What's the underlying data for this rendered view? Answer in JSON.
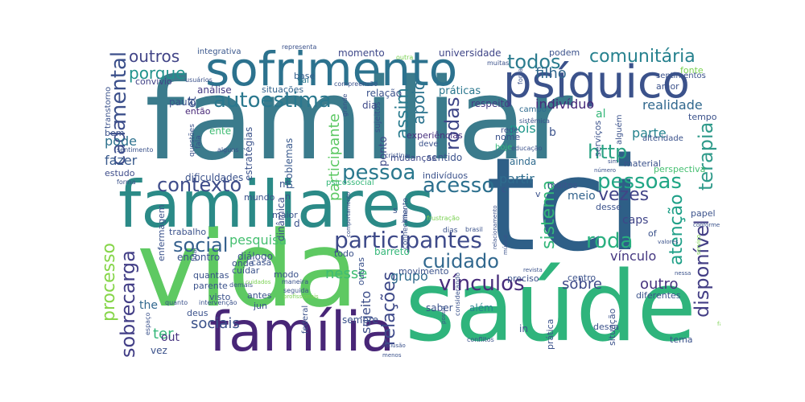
{
  "words": [
    {
      "text": "familiar",
      "color": "#3b7b8c"
    },
    {
      "text": "tci",
      "color": "#2e5f87"
    },
    {
      "text": "vida",
      "color": "#5ec962"
    },
    {
      "text": "saúde",
      "color": "#2fb47c"
    },
    {
      "text": "familiares",
      "color": "#2b8a87"
    },
    {
      "text": "família",
      "color": "#482677"
    },
    {
      "text": "sofrimento",
      "color": "#2c728e"
    },
    {
      "text": "psíquico",
      "color": "#3b528b"
    },
    {
      "text": "participantes",
      "color": "#3e4a89"
    },
    {
      "text": "vínculos",
      "color": "#472d7b"
    },
    {
      "text": "autoestima",
      "color": "#2a788e"
    },
    {
      "text": "pessoa",
      "color": "#2a788e"
    },
    {
      "text": "acesso",
      "color": "#2d708e"
    },
    {
      "text": "cuidado",
      "color": "#31688e"
    },
    {
      "text": "comunitária",
      "color": "#26818e"
    },
    {
      "text": "todos",
      "color": "#2a7b8e"
    },
    {
      "text": "outros",
      "color": "#414487"
    },
    {
      "text": "porque",
      "color": "#20928c"
    },
    {
      "text": "mental",
      "color": "#3c508b"
    },
    {
      "text": "contexto",
      "color": "#3e4c8a"
    },
    {
      "text": "pessoas",
      "color": "#21a685"
    },
    {
      "text": "terapia",
      "color": "#2f9a8a"
    },
    {
      "text": "http",
      "color": "#2ba283"
    },
    {
      "text": "cada",
      "color": "#3d4d8a"
    },
    {
      "text": "rodas",
      "color": "#3f4788"
    },
    {
      "text": "assim",
      "color": "#297b8e"
    },
    {
      "text": "social",
      "color": "#35608d"
    },
    {
      "text": "sobrecarga",
      "color": "#423e86"
    },
    {
      "text": "processo",
      "color": "#86d549"
    },
    {
      "text": "roda",
      "color": "#29af7f"
    },
    {
      "text": "vezes",
      "color": "#414487"
    },
    {
      "text": "atenção",
      "color": "#1fa088"
    },
    {
      "text": "disponível",
      "color": "#433e85"
    },
    {
      "text": "sistema",
      "color": "#33b679"
    },
    {
      "text": "relações",
      "color": "#3e4989"
    },
    {
      "text": "sociais",
      "color": "#3b528b"
    },
    {
      "text": "indivíduo",
      "color": "#472a7a"
    },
    {
      "text": "realidade",
      "color": "#31688e"
    },
    {
      "text": "filho",
      "color": "#31678e"
    },
    {
      "text": "apoio",
      "color": "#2c738e"
    },
    {
      "text": "participante",
      "color": "#5cc863"
    },
    {
      "text": "universidade",
      "color": "#404688"
    },
    {
      "text": "momento",
      "color": "#3f4889"
    },
    {
      "text": "integrativa",
      "color": "#39568c"
    },
    {
      "text": "práticas",
      "color": "#2a778e"
    },
    {
      "text": "relação",
      "color": "#3b528b"
    },
    {
      "text": "respeito",
      "color": "#433d84"
    },
    {
      "text": "campo",
      "color": "#2f6b8e"
    },
    {
      "text": "outro",
      "color": "#46327e"
    },
    {
      "text": "sobre",
      "color": "#3e4a89"
    },
    {
      "text": "grupo",
      "color": "#2f6c8e"
    },
    {
      "text": "sujeito",
      "color": "#3d4e8a"
    },
    {
      "text": "nesse",
      "color": "#3fbc73"
    },
    {
      "text": "pesquisa",
      "color": "#45bf70"
    },
    {
      "text": "ponto",
      "color": "#3e4a89"
    },
    {
      "text": "fazer",
      "color": "#38598c"
    },
    {
      "text": "pode",
      "color": "#2d718e"
    },
    {
      "text": "partir",
      "color": "#2f6c8e"
    },
    {
      "text": "meio",
      "color": "#33638d"
    },
    {
      "text": "caps",
      "color": "#404588"
    },
    {
      "text": "vínculo",
      "color": "#453781"
    },
    {
      "text": "parte",
      "color": "#25838e"
    },
    {
      "text": "pois",
      "color": "#1f978b"
    },
    {
      "text": "problemas",
      "color": "#38588c"
    },
    {
      "text": "dinâmica",
      "color": "#3d4e8a"
    },
    {
      "text": "the",
      "color": "#31688e"
    },
    {
      "text": "ter",
      "color": "#35b779"
    },
    {
      "text": "out",
      "color": "#46337f"
    },
    {
      "text": "vez",
      "color": "#3b528b"
    },
    {
      "text": "estudo",
      "color": "#3e4c8a"
    },
    {
      "text": "análise",
      "color": "#443983"
    },
    {
      "text": "convívio",
      "color": "#414287"
    },
    {
      "text": "situações",
      "color": "#33638d"
    },
    {
      "text": "base",
      "color": "#35608d"
    },
    {
      "text": "vai",
      "color": "#2a788e"
    },
    {
      "text": "transtorno",
      "color": "#3b528b"
    },
    {
      "text": "paulo",
      "color": "#3b528b"
    },
    {
      "text": "então",
      "color": "#482878"
    },
    {
      "text": "ente",
      "color": "#3fbc73"
    },
    {
      "text": "bem",
      "color": "#3b528b"
    },
    {
      "text": "dia",
      "color": "#3e4989"
    },
    {
      "text": "sentido",
      "color": "#3b528b"
    },
    {
      "text": "experiências",
      "color": "#472f7d"
    },
    {
      "text": "mudanças",
      "color": "#3e4a89"
    },
    {
      "text": "indivíduos",
      "color": "#3b528b"
    },
    {
      "text": "nome",
      "color": "#3b528b"
    },
    {
      "text": "ainda",
      "color": "#2f6b8e"
    },
    {
      "text": "estratégias",
      "color": "#3b528b"
    },
    {
      "text": "dificuldades",
      "color": "#3b528b"
    },
    {
      "text": "enfermagem",
      "color": "#3b528b"
    },
    {
      "text": "trabalho",
      "color": "#3b528b"
    },
    {
      "text": "encontro",
      "color": "#3b528b"
    },
    {
      "text": "diálogo",
      "color": "#3b528b"
    },
    {
      "text": "onde",
      "color": "#3b528b"
    },
    {
      "text": "cuidar",
      "color": "#3b528b"
    },
    {
      "text": "quantas",
      "color": "#3b528b"
    },
    {
      "text": "parente",
      "color": "#3b528b"
    },
    {
      "text": "visto",
      "color": "#3b528b"
    },
    {
      "text": "deus",
      "color": "#3b528b"
    },
    {
      "text": "antes",
      "color": "#3b528b"
    },
    {
      "text": "jun",
      "color": "#3b528b"
    },
    {
      "text": "saber",
      "color": "#3b528b"
    },
    {
      "text": "além",
      "color": "#26828e"
    },
    {
      "text": "sempre",
      "color": "#3b528b"
    },
    {
      "text": "federal",
      "color": "#3b528b"
    },
    {
      "text": "acerca",
      "color": "#3b528b"
    },
    {
      "text": "barreto",
      "color": "#35b779"
    },
    {
      "text": "todo",
      "color": "#3b528b"
    },
    {
      "text": "movimento",
      "color": "#3b528b"
    },
    {
      "text": "modo",
      "color": "#3b528b"
    },
    {
      "text": "casa",
      "color": "#3b528b"
    },
    {
      "text": "mundo",
      "color": "#3b528b"
    },
    {
      "text": "maior",
      "color": "#3b528b"
    },
    {
      "text": "outras",
      "color": "#3b528b"
    },
    {
      "text": "muitos",
      "color": "#3b528b"
    },
    {
      "text": "centro",
      "color": "#3b528b"
    },
    {
      "text": "preciso",
      "color": "#3b528b"
    },
    {
      "text": "prática",
      "color": "#3b528b"
    },
    {
      "text": "situação",
      "color": "#3b528b"
    },
    {
      "text": "dessa",
      "color": "#3b528b"
    },
    {
      "text": "in",
      "color": "#3b528b"
    },
    {
      "text": "tema",
      "color": "#3b528b"
    },
    {
      "text": "diferentes",
      "color": "#3b528b"
    },
    {
      "text": "perspectiva",
      "color": "#45bf70"
    },
    {
      "text": "material",
      "color": "#3b528b"
    },
    {
      "text": "papel",
      "color": "#3b528b"
    },
    {
      "text": "desse",
      "color": "#3b528b"
    },
    {
      "text": "of",
      "color": "#3b528b"
    },
    {
      "text": "amor",
      "color": "#3b528b"
    },
    {
      "text": "fonte",
      "color": "#7ad151"
    },
    {
      "text": "sentimentos",
      "color": "#3b528b"
    },
    {
      "text": "tempo",
      "color": "#3b528b"
    },
    {
      "text": "alteridade",
      "color": "#3b528b"
    },
    {
      "text": "serviços",
      "color": "#3b528b"
    },
    {
      "text": "alguém",
      "color": "#3b528b"
    },
    {
      "text": "rede",
      "color": "#3b528b"
    },
    {
      "text": "hoje",
      "color": "#35b779"
    },
    {
      "text": "deve",
      "color": "#3b528b"
    },
    {
      "text": "sujeitos",
      "color": "#3b528b"
    },
    {
      "text": "psicossocial",
      "color": "#35b779"
    },
    {
      "text": "conhecimento",
      "color": "#3b528b"
    },
    {
      "text": "podem",
      "color": "#3b528b"
    },
    {
      "text": "al",
      "color": "#35b779"
    },
    {
      "text": "et",
      "color": "#3b528b"
    },
    {
      "text": "b",
      "color": "#3b528b"
    },
    {
      "text": "m",
      "color": "#3b528b"
    },
    {
      "text": "d",
      "color": "#3b528b"
    },
    {
      "text": "c",
      "color": "#3b528b"
    },
    {
      "text": "v",
      "color": "#3b528b"
    },
    {
      "text": "s",
      "color": "#3b528b"
    },
    {
      "text": "n",
      "color": "#3b528b"
    },
    {
      "text": "representa",
      "color": "#3b528b"
    },
    {
      "text": "outra",
      "color": "#7ad151"
    },
    {
      "text": "compreensão",
      "color": "#3b528b"
    },
    {
      "text": "usuários",
      "color": "#3b528b"
    },
    {
      "text": "muitas",
      "color": "#3b528b"
    },
    {
      "text": "força",
      "color": "#3b528b"
    },
    {
      "text": "sistêmica",
      "color": "#3b528b"
    },
    {
      "text": "educação",
      "color": "#3b528b"
    },
    {
      "text": "sentimento",
      "color": "#3b528b"
    },
    {
      "text": "questões",
      "color": "#3b528b"
    },
    {
      "text": "fala",
      "color": "#3b528b"
    },
    {
      "text": "alguns",
      "color": "#3b528b"
    },
    {
      "text": "grande",
      "color": "#3b528b"
    },
    {
      "text": "cristina",
      "color": "#3b528b"
    },
    {
      "text": "comportamento",
      "color": "#3b528b"
    },
    {
      "text": "filha",
      "color": "#3b528b"
    },
    {
      "text": "frustração",
      "color": "#7ad151"
    },
    {
      "text": "brasil",
      "color": "#3b528b"
    },
    {
      "text": "relacionamento",
      "color": "#3b528b"
    },
    {
      "text": "música",
      "color": "#3b528b"
    },
    {
      "text": "revista",
      "color": "#3b528b"
    },
    {
      "text": "lidar",
      "color": "#3b528b"
    },
    {
      "text": "intervenção",
      "color": "#3b528b"
    },
    {
      "text": "demais",
      "color": "#3b528b"
    },
    {
      "text": "seguida",
      "color": "#3b528b"
    },
    {
      "text": "maneira",
      "color": "#3b528b"
    },
    {
      "text": "cuidados",
      "color": "#7ad151"
    },
    {
      "text": "profissionais",
      "color": "#7ad151"
    },
    {
      "text": "considerando",
      "color": "#3b528b"
    },
    {
      "text": "conflitos",
      "color": "#3b528b"
    },
    {
      "text": "inclusão",
      "color": "#3b528b"
    },
    {
      "text": "quanto",
      "color": "#3b528b"
    },
    {
      "text": "espaço",
      "color": "#3b528b"
    },
    {
      "text": "menos",
      "color": "#3b528b"
    },
    {
      "text": "valores",
      "color": "#3b528b"
    },
    {
      "text": "serviço",
      "color": "#7ad151"
    },
    {
      "text": "conforme",
      "color": "#3b528b"
    },
    {
      "text": "meio",
      "color": "#3b528b"
    },
    {
      "text": "forma",
      "color": "#3b528b"
    },
    {
      "text": "número",
      "color": "#3b528b"
    },
    {
      "text": "sim",
      "color": "#3b528b"
    },
    {
      "text": "dias",
      "color": "#3b528b"
    },
    {
      "text": "possui",
      "color": "#3b528b"
    },
    {
      "text": "familias",
      "color": "#7ad151"
    },
    {
      "text": "nessa",
      "color": "#3b528b"
    }
  ]
}
